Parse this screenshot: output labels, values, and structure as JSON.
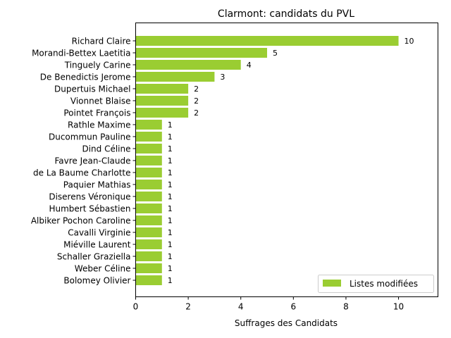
{
  "chart_data": {
    "type": "bar",
    "orientation": "horizontal",
    "title": "Clarmont: candidats du PVL",
    "xlabel": "Suffrages des Candidats",
    "ylabel": "",
    "xlim": [
      0,
      11.5
    ],
    "xticks": [
      0,
      2,
      4,
      6,
      8,
      10
    ],
    "grid": false,
    "legend_position": "lower-right",
    "bar_color": "#9acd32",
    "categories": [
      "Richard Claire",
      "Morandi-Bettex Laetitia",
      "Tinguely Carine",
      "De Benedictis Jerome",
      "Dupertuis Michael",
      "Vionnet Blaise",
      "Pointet François",
      "Rathle Maxime",
      "Ducommun Pauline",
      "Dind Céline",
      "Favre Jean-Claude",
      "de La Baume Charlotte",
      "Paquier Mathias",
      "Diserens Véronique",
      "Humbert Sébastien",
      "Albiker Pochon Caroline",
      "Cavalli Virginie",
      "Miéville Laurent",
      "Schaller Graziella",
      "Weber Céline",
      "Bolomey Olivier"
    ],
    "series": [
      {
        "name": "Listes modifiées",
        "values": [
          10,
          5,
          4,
          3,
          2,
          2,
          2,
          1,
          1,
          1,
          1,
          1,
          1,
          1,
          1,
          1,
          1,
          1,
          1,
          1,
          1
        ]
      }
    ]
  }
}
